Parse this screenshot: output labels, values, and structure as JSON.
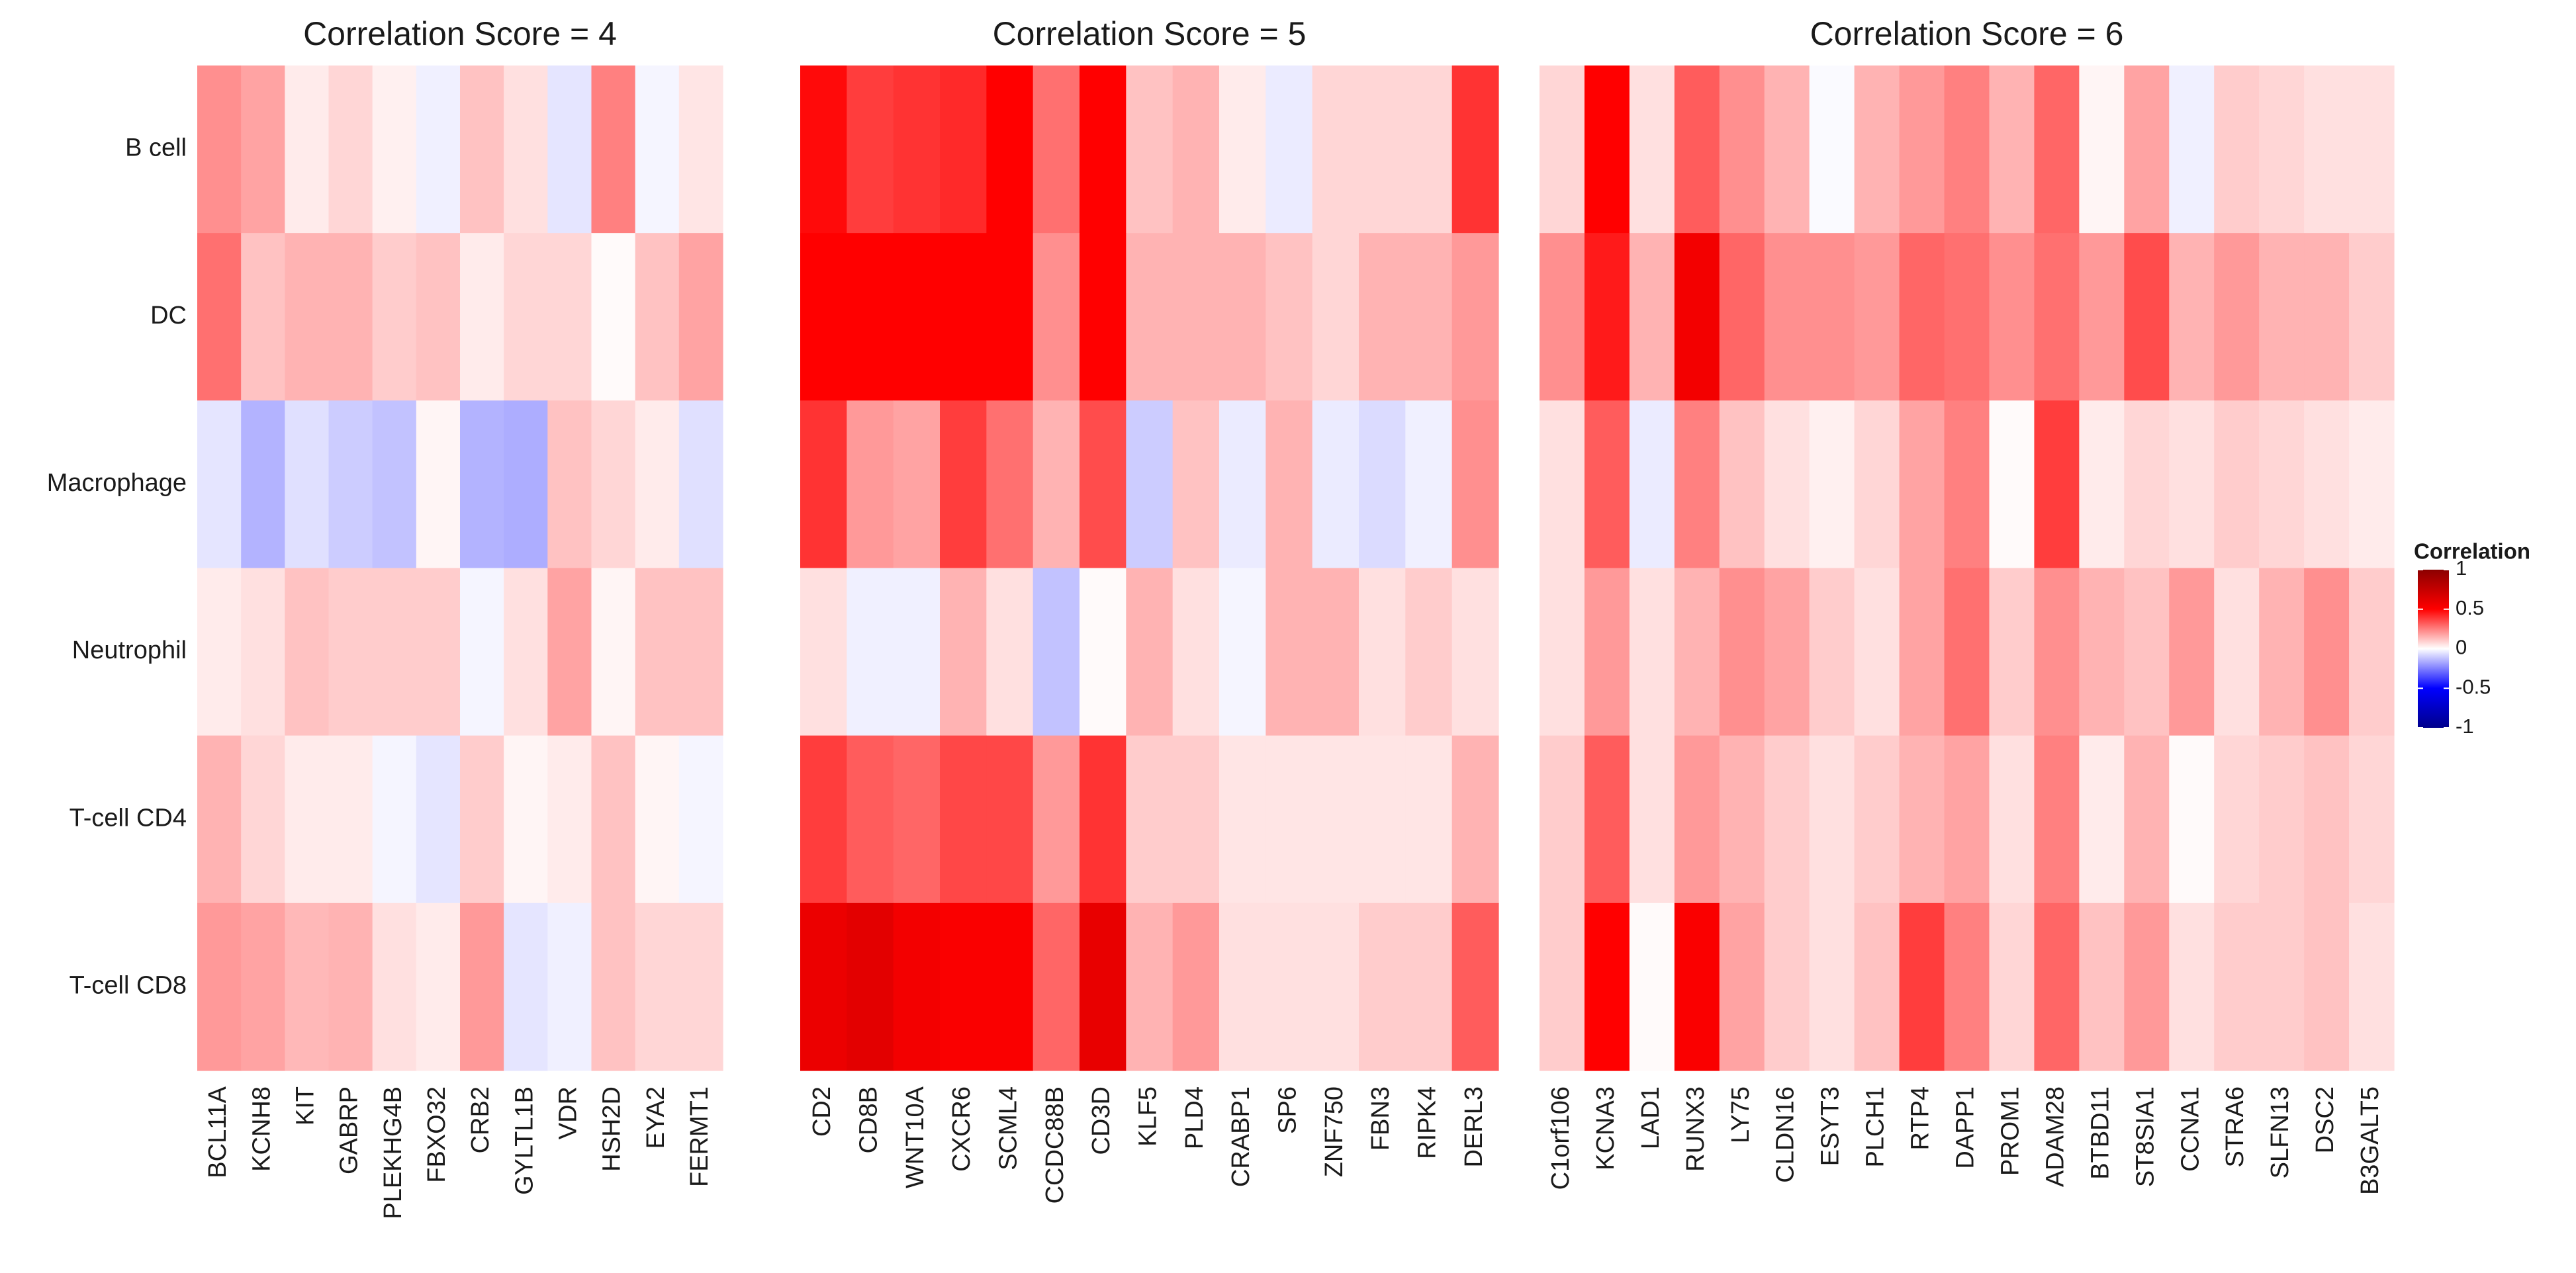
{
  "chart_data": [
    {
      "type": "heatmap",
      "title": "Correlation Score = 4",
      "rows": [
        "B cell",
        "DC",
        "Macrophage",
        "Neutrophil",
        "T-cell CD4",
        "T-cell CD8"
      ],
      "categories": [
        "BCL11A",
        "KCNH8",
        "KIT",
        "GABRP",
        "PLEKHG4B",
        "FBXO32",
        "CRB2",
        "GYLTL1B",
        "VDR",
        "HSH2D",
        "EYA2",
        "FERMT1"
      ],
      "values": [
        [
          0.22,
          0.18,
          0.04,
          0.08,
          0.03,
          -0.03,
          0.12,
          0.06,
          -0.05,
          0.25,
          -0.02,
          0.05
        ],
        [
          0.28,
          0.12,
          0.15,
          0.15,
          0.1,
          0.12,
          0.04,
          0.08,
          0.08,
          0.01,
          0.12,
          0.18
        ],
        [
          -0.05,
          -0.15,
          -0.06,
          -0.1,
          -0.12,
          0.02,
          -0.15,
          -0.16,
          0.12,
          0.08,
          0.04,
          -0.06
        ],
        [
          0.04,
          0.06,
          0.12,
          0.1,
          0.1,
          0.1,
          -0.02,
          0.06,
          0.18,
          0.02,
          0.12,
          0.12
        ],
        [
          0.15,
          0.08,
          0.04,
          0.04,
          -0.02,
          -0.05,
          0.1,
          0.02,
          0.04,
          0.12,
          0.02,
          -0.02
        ],
        [
          0.2,
          0.18,
          0.14,
          0.15,
          0.06,
          0.04,
          0.2,
          -0.05,
          -0.03,
          0.12,
          0.08,
          0.08
        ]
      ]
    },
    {
      "type": "heatmap",
      "title": "Correlation Score = 5",
      "categories": [
        "CD2",
        "CD8B",
        "WNT10A",
        "CXCR6",
        "SCML4",
        "CCDC88B",
        "CD3D",
        "KLF5",
        "PLD4",
        "CRABP1",
        "SP6",
        "ZNF750",
        "FBN3",
        "RIPK4",
        "DERL3"
      ],
      "values": [
        [
          0.48,
          0.38,
          0.4,
          0.42,
          0.5,
          0.28,
          0.5,
          0.12,
          0.15,
          0.04,
          -0.04,
          0.08,
          0.08,
          0.08,
          0.4
        ],
        [
          0.5,
          0.5,
          0.5,
          0.5,
          0.5,
          0.22,
          0.5,
          0.15,
          0.15,
          0.15,
          0.12,
          0.08,
          0.15,
          0.15,
          0.2
        ],
        [
          0.4,
          0.2,
          0.18,
          0.38,
          0.28,
          0.15,
          0.35,
          -0.1,
          0.12,
          -0.04,
          0.15,
          -0.04,
          -0.07,
          -0.03,
          0.22
        ],
        [
          0.06,
          -0.03,
          -0.03,
          0.15,
          0.06,
          -0.12,
          0.01,
          0.15,
          0.06,
          -0.02,
          0.15,
          0.15,
          0.06,
          0.1,
          0.06
        ],
        [
          0.38,
          0.32,
          0.3,
          0.36,
          0.36,
          0.2,
          0.4,
          0.1,
          0.1,
          0.05,
          0.05,
          0.05,
          0.05,
          0.05,
          0.15
        ],
        [
          0.58,
          0.62,
          0.55,
          0.52,
          0.52,
          0.3,
          0.6,
          0.15,
          0.2,
          0.06,
          0.06,
          0.06,
          0.1,
          0.1,
          0.32
        ]
      ]
    },
    {
      "type": "heatmap",
      "title": "Correlation Score = 6",
      "categories": [
        "C1orf106",
        "KCNA3",
        "LAD1",
        "RUNX3",
        "LY75",
        "CLDN16",
        "ESYT3",
        "PLCH1",
        "RTP4",
        "DAPP1",
        "PROM1",
        "ADAM28",
        "BTBD11",
        "ST8SIA1",
        "CCNA1",
        "STRA6",
        "SLFN13",
        "DSC2",
        "B3GALT5"
      ],
      "values": [
        [
          0.08,
          0.5,
          0.06,
          0.32,
          0.22,
          0.15,
          -0.01,
          0.15,
          0.2,
          0.25,
          0.15,
          0.3,
          0.02,
          0.18,
          -0.03,
          0.1,
          0.08,
          0.06,
          0.06
        ],
        [
          0.22,
          0.45,
          0.15,
          0.55,
          0.3,
          0.22,
          0.22,
          0.2,
          0.3,
          0.28,
          0.22,
          0.28,
          0.2,
          0.35,
          0.15,
          0.2,
          0.15,
          0.15,
          0.1
        ],
        [
          0.06,
          0.32,
          -0.04,
          0.25,
          0.12,
          0.06,
          0.03,
          0.08,
          0.18,
          0.25,
          0.01,
          0.38,
          0.04,
          0.08,
          0.06,
          0.1,
          0.08,
          0.06,
          0.04
        ],
        [
          0.06,
          0.2,
          0.06,
          0.15,
          0.22,
          0.18,
          0.1,
          0.06,
          0.18,
          0.28,
          0.1,
          0.22,
          0.15,
          0.12,
          0.2,
          0.06,
          0.15,
          0.22,
          0.1
        ],
        [
          0.1,
          0.32,
          0.06,
          0.2,
          0.15,
          0.1,
          0.06,
          0.1,
          0.15,
          0.18,
          0.06,
          0.25,
          0.04,
          0.15,
          0.01,
          0.08,
          0.1,
          0.12,
          0.08
        ],
        [
          0.1,
          0.5,
          0.01,
          0.52,
          0.18,
          0.1,
          0.06,
          0.12,
          0.38,
          0.25,
          0.08,
          0.3,
          0.12,
          0.2,
          0.06,
          0.1,
          0.1,
          0.12,
          0.06
        ]
      ]
    }
  ],
  "colorbar": {
    "title": "Correlation",
    "range": [
      -1,
      1
    ],
    "ticks": [
      -1,
      -0.5,
      0,
      0.5,
      1
    ],
    "colors": [
      "#00008b",
      "#0000ff",
      "#ffffff",
      "#ff0000",
      "#8b0000"
    ]
  }
}
